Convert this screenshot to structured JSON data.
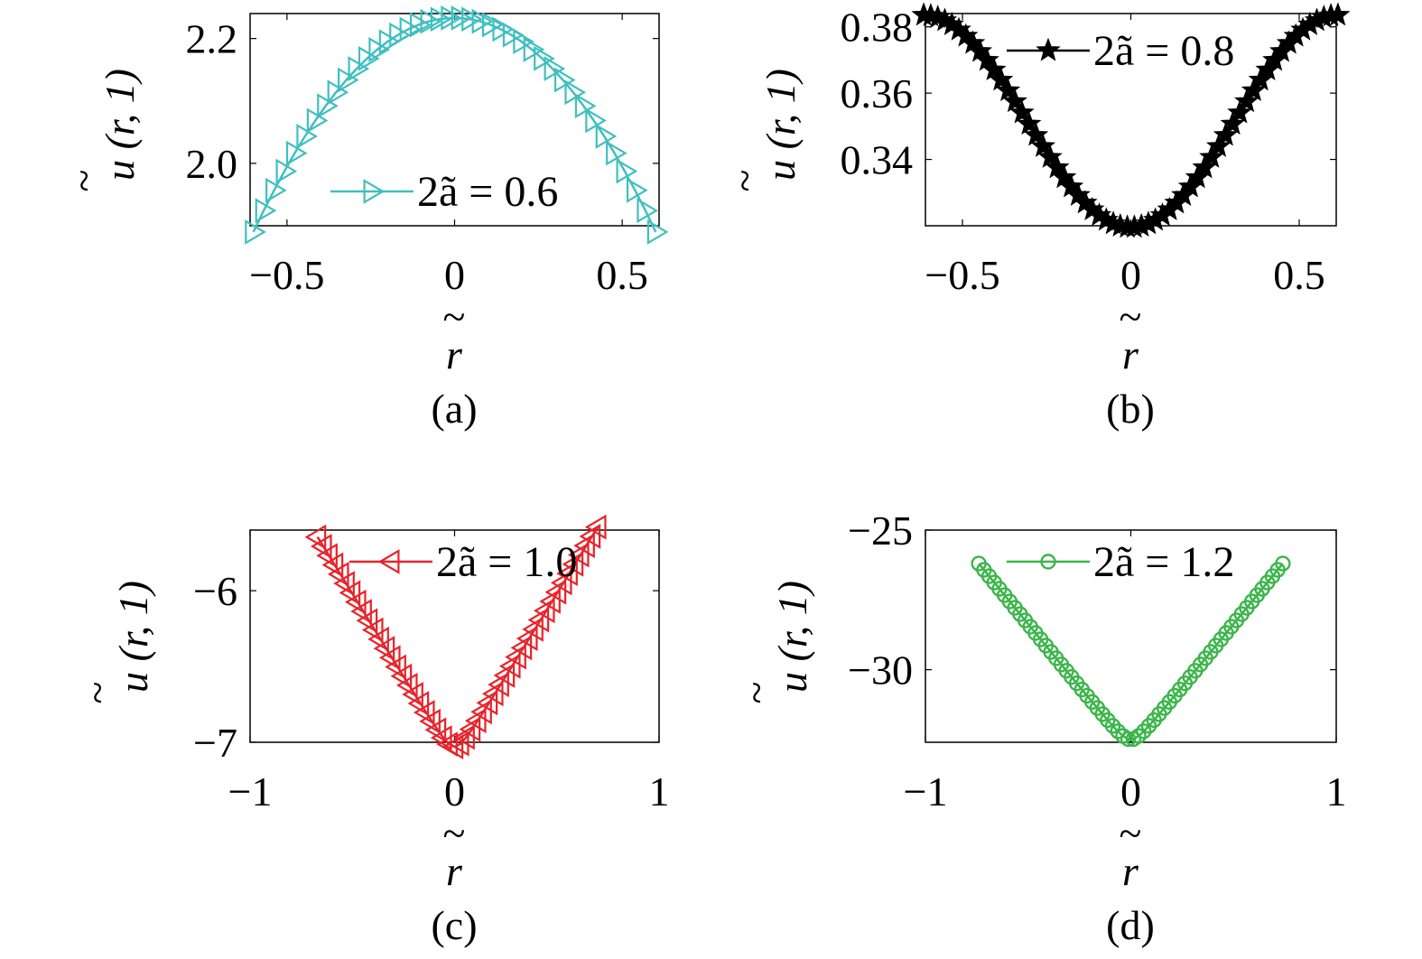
{
  "chart_data": [
    {
      "type": "scatter",
      "panel_label": "(a)",
      "xlabel": "r",
      "xlabel_tilde": "~",
      "ylabel": "u (r, 1)",
      "ylabel_tilde": "~",
      "xlim": [
        -0.61,
        0.61
      ],
      "ylim": [
        1.9,
        2.24
      ],
      "xticks": [
        -0.5,
        0,
        0.5
      ],
      "xtick_labels": [
        "−0.5",
        "0",
        "0.5"
      ],
      "yticks": [
        2.0,
        2.2
      ],
      "ytick_labels": [
        "2.0",
        "2.2"
      ],
      "grid": false,
      "legend_position": "bottom-center",
      "series": [
        {
          "name": "2ã = 0.6",
          "legend_label": "2ã = 0.6",
          "marker": "triangle-right",
          "color": "#40BFBF",
          "connected": true,
          "curve": {
            "form": "quadratic",
            "center": 0,
            "value_at_center": 2.233,
            "value_at_edge": 1.89,
            "x_range": [
              -0.6,
              0.6
            ],
            "points": 40
          }
        }
      ]
    },
    {
      "type": "scatter",
      "panel_label": "(b)",
      "xlabel": "r",
      "xlabel_tilde": "~",
      "ylabel": "u (r, 1)",
      "ylabel_tilde": "~",
      "xlim": [
        -0.61,
        0.61
      ],
      "ylim": [
        0.32,
        0.384
      ],
      "xticks": [
        -0.5,
        0,
        0.5
      ],
      "xtick_labels": [
        "−0.5",
        "0",
        "0.5"
      ],
      "yticks": [
        0.34,
        0.36,
        0.38
      ],
      "ytick_labels": [
        "0.34",
        "0.36",
        "0.38"
      ],
      "grid": false,
      "legend_position": "top-center",
      "series": [
        {
          "name": "2ã = 0.8",
          "legend_label": "2ã = 0.8",
          "marker": "star",
          "color": "#000000",
          "connected": true,
          "curve": {
            "form": "cosine",
            "center": 0,
            "value_at_center": 0.3195,
            "value_at_edge": 0.3835,
            "x_range": [
              -0.615,
              0.615
            ],
            "points": 60
          }
        }
      ]
    },
    {
      "type": "scatter",
      "panel_label": "(c)",
      "xlabel": "r",
      "xlabel_tilde": "~",
      "ylabel": "u (r, 1)",
      "ylabel_tilde": "~",
      "xlim": [
        -1,
        1
      ],
      "ylim": [
        -7.0,
        -5.6
      ],
      "xticks": [
        -1,
        0,
        1
      ],
      "xtick_labels": [
        "−1",
        "0",
        "1"
      ],
      "yticks": [
        -7,
        -6
      ],
      "ytick_labels": [
        "−7",
        "−6"
      ],
      "grid": false,
      "legend_position": "top-center",
      "series": [
        {
          "name": "2ã = 1.0",
          "legend_label": "2ã = 1.0",
          "marker": "triangle-left",
          "color": "#E8232A",
          "connected": true,
          "curve": {
            "form": "quadratic-rounded",
            "center": 0,
            "value_at_center": -7.03,
            "value_at_edge": -5.58,
            "x_range": [
              -0.67,
              0.7
            ],
            "points": 50
          }
        }
      ]
    },
    {
      "type": "scatter",
      "panel_label": "(d)",
      "xlabel": "r",
      "xlabel_tilde": "~",
      "ylabel": "u (r, 1)",
      "ylabel_tilde": "~",
      "xlim": [
        -1,
        1
      ],
      "ylim": [
        -32.6,
        -25
      ],
      "xticks": [
        -1,
        0,
        1
      ],
      "xtick_labels": [
        "−1",
        "0",
        "1"
      ],
      "yticks": [
        -30,
        -25
      ],
      "ytick_labels": [
        "−30",
        "−25"
      ],
      "grid": false,
      "legend_position": "top-center",
      "series": [
        {
          "name": "2ã = 1.2",
          "legend_label": "2ã = 1.2",
          "marker": "circle",
          "color": "#3BB54A",
          "connected": true,
          "curve": {
            "form": "quadratic-rounded",
            "center": 0,
            "value_at_center": -32.5,
            "value_at_edge": -26.2,
            "x_range": [
              -0.74,
              0.74
            ],
            "points": 60
          }
        }
      ]
    }
  ]
}
